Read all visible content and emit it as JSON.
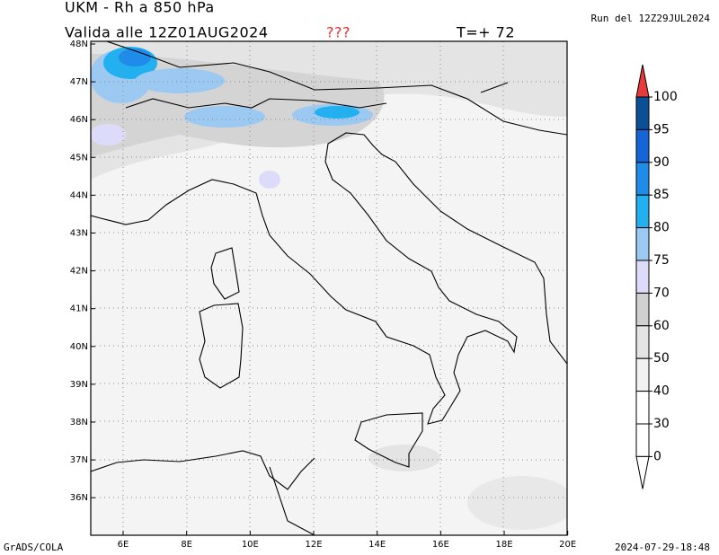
{
  "header": {
    "title": "UKM - Rh a 850 hPa",
    "valid": "Valida alle 12Z01AUG2024",
    "flag": "???",
    "forecast": "T=+ 72",
    "run": "Run del 12Z29JUL2024"
  },
  "axes": {
    "x_labels": [
      "6E",
      "8E",
      "10E",
      "12E",
      "14E",
      "16E",
      "18E",
      "20E"
    ],
    "y_labels": [
      "48N",
      "47N",
      "46N",
      "45N",
      "44N",
      "43N",
      "42N",
      "41N",
      "40N",
      "39N",
      "38N",
      "37N",
      "36N"
    ]
  },
  "colorbar": {
    "levels": [
      100,
      95,
      90,
      85,
      80,
      75,
      70,
      60,
      50,
      40,
      30,
      0
    ],
    "colors": [
      "#0b4f96",
      "#1565d8",
      "#1e8ce8",
      "#22b0f0",
      "#9cc9f2",
      "#dcdcfa",
      "#d0d0d0",
      "#e4e4e4",
      "#f2f2f2",
      "#ffffff",
      "#ffffff"
    ],
    "over_color": "#e83a3a"
  },
  "footer": {
    "left": "GrADS/COLA",
    "right": "2024-07-29-18:48"
  }
}
